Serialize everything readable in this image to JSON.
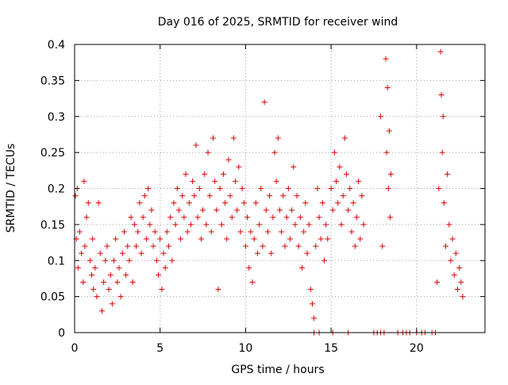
{
  "chart_data": {
    "type": "scatter",
    "title": "Day 016 of 2025, SRMTID for receiver wind",
    "xlabel": "GPS time / hours",
    "ylabel": "SRMTID / TECUs",
    "xlim": [
      0,
      24
    ],
    "ylim": [
      0,
      0.4
    ],
    "x_ticks": [
      0,
      5,
      10,
      15,
      20
    ],
    "x_tick_labels": [
      "0",
      "5",
      "10",
      "15",
      "20"
    ],
    "y_ticks": [
      0,
      0.05,
      0.1,
      0.15,
      0.2,
      0.25,
      0.3,
      0.35,
      0.4
    ],
    "y_tick_labels": [
      "0",
      "0.05",
      "0.1",
      "0.15",
      "0.2",
      "0.25",
      "0.3",
      "0.35",
      "0.4"
    ],
    "grid": true,
    "marker": "plus",
    "series": [
      {
        "name": "SRMTID",
        "color": "#e00000",
        "points": [
          [
            0.05,
            0.19
          ],
          [
            0.1,
            0.13
          ],
          [
            0.15,
            0.2
          ],
          [
            0.2,
            0.09
          ],
          [
            0.3,
            0.14
          ],
          [
            0.4,
            0.11
          ],
          [
            0.5,
            0.07
          ],
          [
            0.55,
            0.21
          ],
          [
            0.6,
            0.12
          ],
          [
            0.7,
            0.16
          ],
          [
            0.8,
            0.18
          ],
          [
            0.9,
            0.1
          ],
          [
            1.0,
            0.08
          ],
          [
            1.05,
            0.13
          ],
          [
            1.1,
            0.06
          ],
          [
            1.2,
            0.09
          ],
          [
            1.3,
            0.05
          ],
          [
            1.4,
            0.18
          ],
          [
            1.5,
            0.11
          ],
          [
            1.6,
            0.03
          ],
          [
            1.7,
            0.07
          ],
          [
            1.8,
            0.1
          ],
          [
            1.9,
            0.12
          ],
          [
            2.0,
            0.06
          ],
          [
            2.1,
            0.08
          ],
          [
            2.2,
            0.04
          ],
          [
            2.3,
            0.1
          ],
          [
            2.4,
            0.13
          ],
          [
            2.5,
            0.07
          ],
          [
            2.6,
            0.09
          ],
          [
            2.7,
            0.05
          ],
          [
            2.8,
            0.11
          ],
          [
            2.9,
            0.14
          ],
          [
            3.0,
            0.08
          ],
          [
            3.1,
            0.12
          ],
          [
            3.2,
            0.1
          ],
          [
            3.3,
            0.16
          ],
          [
            3.4,
            0.07
          ],
          [
            3.5,
            0.15
          ],
          [
            3.6,
            0.12
          ],
          [
            3.7,
            0.14
          ],
          [
            3.8,
            0.18
          ],
          [
            3.9,
            0.11
          ],
          [
            4.0,
            0.16
          ],
          [
            4.1,
            0.19
          ],
          [
            4.2,
            0.13
          ],
          [
            4.3,
            0.2
          ],
          [
            4.4,
            0.15
          ],
          [
            4.5,
            0.17
          ],
          [
            4.6,
            0.12
          ],
          [
            4.7,
            0.14
          ],
          [
            4.8,
            0.1
          ],
          [
            4.9,
            0.08
          ],
          [
            5.0,
            0.13
          ],
          [
            5.1,
            0.06
          ],
          [
            5.2,
            0.11
          ],
          [
            5.3,
            0.09
          ],
          [
            5.4,
            0.14
          ],
          [
            5.5,
            0.12
          ],
          [
            5.6,
            0.16
          ],
          [
            5.7,
            0.1
          ],
          [
            5.8,
            0.18
          ],
          [
            5.9,
            0.15
          ],
          [
            6.0,
            0.2
          ],
          [
            6.1,
            0.17
          ],
          [
            6.2,
            0.13
          ],
          [
            6.3,
            0.19
          ],
          [
            6.4,
            0.16
          ],
          [
            6.5,
            0.22
          ],
          [
            6.6,
            0.14
          ],
          [
            6.7,
            0.18
          ],
          [
            6.8,
            0.15
          ],
          [
            6.9,
            0.21
          ],
          [
            7.0,
            0.19
          ],
          [
            7.1,
            0.26
          ],
          [
            7.2,
            0.16
          ],
          [
            7.3,
            0.2
          ],
          [
            7.4,
            0.13
          ],
          [
            7.5,
            0.17
          ],
          [
            7.6,
            0.22
          ],
          [
            7.7,
            0.15
          ],
          [
            7.8,
            0.25
          ],
          [
            7.9,
            0.19
          ],
          [
            8.0,
            0.14
          ],
          [
            8.1,
            0.27
          ],
          [
            8.2,
            0.21
          ],
          [
            8.3,
            0.17
          ],
          [
            8.4,
            0.06
          ],
          [
            8.5,
            0.2
          ],
          [
            8.6,
            0.15
          ],
          [
            8.7,
            0.22
          ],
          [
            8.8,
            0.18
          ],
          [
            8.9,
            0.13
          ],
          [
            9.0,
            0.24
          ],
          [
            9.1,
            0.19
          ],
          [
            9.2,
            0.16
          ],
          [
            9.3,
            0.27
          ],
          [
            9.4,
            0.21
          ],
          [
            9.5,
            0.17
          ],
          [
            9.6,
            0.23
          ],
          [
            9.7,
            0.14
          ],
          [
            9.8,
            0.2
          ],
          [
            9.9,
            0.18
          ],
          [
            10.0,
            0.12
          ],
          [
            10.1,
            0.16
          ],
          [
            10.2,
            0.09
          ],
          [
            10.3,
            0.14
          ],
          [
            10.4,
            0.07
          ],
          [
            10.5,
            0.13
          ],
          [
            10.6,
            0.18
          ],
          [
            10.7,
            0.11
          ],
          [
            10.8,
            0.15
          ],
          [
            10.9,
            0.2
          ],
          [
            11.0,
            0.12
          ],
          [
            11.1,
            0.32
          ],
          [
            11.2,
            0.17
          ],
          [
            11.3,
            0.14
          ],
          [
            11.4,
            0.19
          ],
          [
            11.5,
            0.11
          ],
          [
            11.6,
            0.16
          ],
          [
            11.7,
            0.25
          ],
          [
            11.8,
            0.21
          ],
          [
            11.9,
            0.27
          ],
          [
            12.0,
            0.17
          ],
          [
            12.1,
            0.14
          ],
          [
            12.2,
            0.19
          ],
          [
            12.3,
            0.12
          ],
          [
            12.4,
            0.16
          ],
          [
            12.5,
            0.2
          ],
          [
            12.6,
            0.13
          ],
          [
            12.7,
            0.17
          ],
          [
            12.8,
            0.23
          ],
          [
            12.9,
            0.15
          ],
          [
            13.0,
            0.19
          ],
          [
            13.1,
            0.12
          ],
          [
            13.2,
            0.16
          ],
          [
            13.3,
            0.09
          ],
          [
            13.4,
            0.14
          ],
          [
            13.5,
            0.18
          ],
          [
            13.6,
            0.11
          ],
          [
            13.7,
            0.15
          ],
          [
            13.8,
            0.06
          ],
          [
            13.9,
            0.04
          ],
          [
            14.0,
            0.02
          ],
          [
            14.1,
            0.12
          ],
          [
            14.2,
            0.2
          ],
          [
            14.3,
            0.16
          ],
          [
            14.4,
            0.13
          ],
          [
            14.5,
            0.18
          ],
          [
            14.6,
            0.1
          ],
          [
            14.7,
            0.15
          ],
          [
            14.8,
            0.13
          ],
          [
            15.0,
            0.2
          ],
          [
            15.1,
            0.17
          ],
          [
            15.2,
            0.25
          ],
          [
            15.3,
            0.21
          ],
          [
            15.4,
            0.18
          ],
          [
            15.5,
            0.23
          ],
          [
            15.6,
            0.15
          ],
          [
            15.7,
            0.19
          ],
          [
            15.8,
            0.27
          ],
          [
            15.9,
            0.22
          ],
          [
            16.0,
            0.17
          ],
          [
            16.1,
            0.2
          ],
          [
            16.2,
            0.14
          ],
          [
            16.3,
            0.18
          ],
          [
            16.4,
            0.12
          ],
          [
            16.5,
            0.16
          ],
          [
            16.6,
            0.21
          ],
          [
            16.7,
            0.13
          ],
          [
            16.8,
            0.19
          ],
          [
            16.9,
            0.15
          ],
          [
            17.9,
            0.3
          ],
          [
            18.0,
            0.12
          ],
          [
            18.2,
            0.38
          ],
          [
            18.25,
            0.25
          ],
          [
            18.3,
            0.34
          ],
          [
            18.35,
            0.2
          ],
          [
            18.4,
            0.28
          ],
          [
            18.45,
            0.16
          ],
          [
            18.5,
            0.22
          ],
          [
            21.2,
            0.07
          ],
          [
            21.3,
            0.2
          ],
          [
            21.4,
            0.39
          ],
          [
            21.45,
            0.33
          ],
          [
            21.5,
            0.25
          ],
          [
            21.55,
            0.3
          ],
          [
            21.6,
            0.18
          ],
          [
            21.7,
            0.12
          ],
          [
            21.8,
            0.22
          ],
          [
            21.9,
            0.15
          ],
          [
            22.0,
            0.1
          ],
          [
            22.1,
            0.13
          ],
          [
            22.2,
            0.08
          ],
          [
            22.3,
            0.11
          ],
          [
            22.4,
            0.06
          ],
          [
            22.5,
            0.09
          ],
          [
            22.6,
            0.07
          ],
          [
            22.7,
            0.05
          ],
          [
            14.0,
            0
          ],
          [
            14.3,
            0
          ],
          [
            15.1,
            0
          ],
          [
            16.0,
            0
          ],
          [
            17.5,
            0
          ],
          [
            17.7,
            0
          ],
          [
            17.9,
            0
          ],
          [
            18.1,
            0
          ],
          [
            18.9,
            0
          ],
          [
            19.2,
            0
          ],
          [
            19.4,
            0
          ],
          [
            19.6,
            0
          ],
          [
            20.0,
            0
          ],
          [
            20.3,
            0
          ],
          [
            20.5,
            0
          ],
          [
            20.9,
            0
          ],
          [
            21.1,
            0
          ]
        ]
      }
    ]
  }
}
